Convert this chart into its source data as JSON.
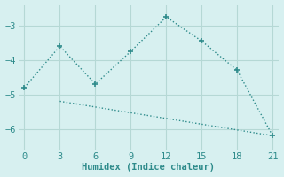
{
  "line1_x": [
    0,
    3,
    6,
    9,
    12,
    15,
    18,
    21
  ],
  "line1_y": [
    -4.8,
    -3.6,
    -4.7,
    -3.75,
    -2.75,
    -3.45,
    -4.3,
    -6.2
  ],
  "line2_x": [
    3,
    21
  ],
  "line2_y": [
    -5.2,
    -6.2
  ],
  "color": "#2e8b8b",
  "bg_color": "#d7f0f0",
  "xlabel": "Humidex (Indice chaleur)",
  "xlim": [
    -0.5,
    21.5
  ],
  "ylim": [
    -6.6,
    -2.4
  ],
  "yticks": [
    -6,
    -5,
    -4,
    -3
  ],
  "xticks": [
    0,
    3,
    6,
    9,
    12,
    15,
    18,
    21
  ],
  "grid_color": "#b5d8d5",
  "marker": "+",
  "marker_size": 5,
  "line_width": 1.0
}
